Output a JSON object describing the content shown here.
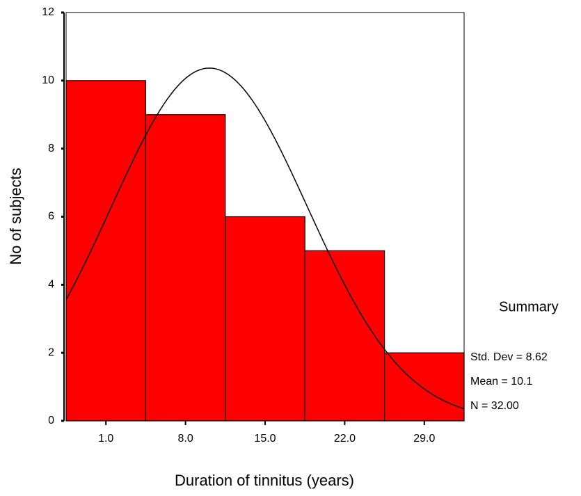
{
  "chart_data": {
    "type": "histogram",
    "x_label": "Duration of tinnitus (years)",
    "y_label": "No of subjects",
    "bins": [
      -2.5,
      4.5,
      11.5,
      18.5,
      25.5,
      32.5
    ],
    "values": [
      10,
      9,
      6,
      5,
      2
    ],
    "color": "#ff0000",
    "xlim": [
      -2.5,
      32.5
    ],
    "xticks": [
      {
        "value": 1,
        "label": "1.0"
      },
      {
        "value": 8,
        "label": "8.0"
      },
      {
        "value": 15,
        "label": "15.0"
      },
      {
        "value": 22,
        "label": "22.0"
      },
      {
        "value": 29,
        "label": "29.0"
      }
    ],
    "ylim": [
      0,
      12
    ],
    "yticks": [
      0,
      2,
      4,
      6,
      8,
      10,
      12
    ],
    "normal_curve": true,
    "summary": {
      "title": "Summary",
      "items": [
        {
          "value": 8.62,
          "label": "Std. Dev = 8.62"
        },
        {
          "value": 10.1,
          "label": "Mean = 10.1"
        },
        {
          "value": 32,
          "label": "N = 32.00"
        }
      ]
    }
  }
}
